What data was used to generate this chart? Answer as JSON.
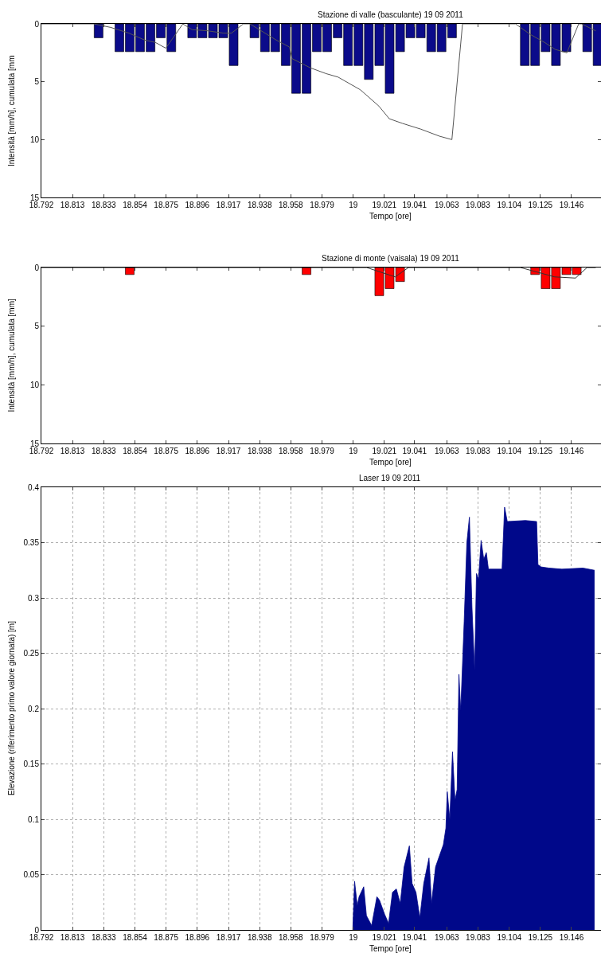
{
  "chart_data": [
    {
      "type": "bar",
      "title": "Stazione di valle (basculante) 19 09 2011",
      "xlabel": "Tempo [ore]",
      "ylabel": "Intensità [mm/h], cumulata [mm",
      "xlim": [
        18.7917,
        19.1655
      ],
      "ylim": [
        15,
        0
      ],
      "yticks": [
        0,
        5,
        10,
        15
      ],
      "xticks": [
        {
          "value": 18.7917,
          "label": "18.792"
        },
        {
          "value": 18.8125,
          "label": "18.813"
        },
        {
          "value": 18.8333,
          "label": "18.833"
        },
        {
          "value": 18.8542,
          "label": "18.854"
        },
        18.875,
        {
          "value": 18.8958,
          "label": "18.896"
        },
        {
          "value": 18.9167,
          "label": "18.917"
        },
        {
          "value": 18.9375,
          "label": "18.938"
        },
        {
          "value": 18.9583,
          "label": "18.958"
        },
        {
          "value": 18.9792,
          "label": "18.979"
        },
        19,
        {
          "value": 19.0208,
          "label": "19.021"
        },
        19.041,
        {
          "value": 19.0625,
          "label": "19.063"
        },
        {
          "value": 19.0833,
          "label": "19.083"
        },
        {
          "value": 19.1042,
          "label": "19.104"
        },
        19.125,
        {
          "value": 19.1458,
          "label": "19.146"
        }
      ],
      "series": [
        {
          "type": "bar",
          "color": "#0b0b8a",
          "x": [
            18.8299,
            18.8438,
            18.8507,
            18.8576,
            18.8646,
            18.8715,
            18.8785,
            18.8924,
            18.8993,
            18.9063,
            18.9132,
            18.9201,
            18.934,
            18.941,
            18.9479,
            18.9549,
            18.9618,
            18.9688,
            18.9757,
            18.9826,
            18.9896,
            18.9965,
            19.0035,
            19.0104,
            19.0174,
            19.0243,
            19.0313,
            19.0382,
            19.0451,
            19.0521,
            19.059,
            19.066,
            19.1146,
            19.1215,
            19.1285,
            19.1354,
            19.1424,
            19.1563,
            19.1632
          ],
          "values": [
            1.2,
            2.4,
            2.4,
            2.4,
            2.4,
            1.2,
            2.4,
            1.2,
            1.2,
            1.2,
            1.2,
            3.6,
            1.2,
            2.4,
            2.4,
            3.6,
            6.0,
            6.0,
            2.4,
            2.4,
            1.2,
            3.6,
            3.6,
            4.8,
            3.6,
            6.0,
            2.4,
            1.2,
            1.2,
            2.4,
            2.4,
            1.2,
            3.6,
            3.6,
            2.4,
            3.6,
            2.4,
            2.4,
            3.6
          ]
        },
        {
          "type": "line",
          "color": "#555555",
          "x": [
            18.7917,
            18.8265,
            18.8379,
            18.8502,
            18.8607,
            18.8678,
            18.8748,
            18.8862,
            18.8924,
            18.9029,
            18.9134,
            18.9187,
            18.9266,
            18.931,
            18.9398,
            18.9486,
            18.9574,
            18.9591,
            18.9714,
            18.9819,
            18.9899,
            19.0048,
            19.0171,
            19.0241,
            19.0329,
            19.0452,
            19.0575,
            19.0659,
            19.073,
            19.1084,
            19.1181,
            19.1278,
            19.1348,
            19.1427,
            19.1506,
            19.1524,
            19.162
          ],
          "values": [
            0,
            0,
            0.3,
            0.8,
            1.4,
            1.6,
            2.1,
            0,
            0.5,
            0.6,
            0.8,
            0.8,
            0,
            0,
            0.7,
            1.4,
            2.0,
            3.0,
            3.8,
            4.3,
            4.6,
            5.7,
            7.1,
            8.2,
            8.6,
            9.1,
            9.7,
            10.0,
            0,
            0,
            0.9,
            1.6,
            2.2,
            2.5,
            0,
            0,
            0.6
          ]
        }
      ]
    },
    {
      "type": "bar",
      "title": "Stazione di monte (vaisala) 19 09 2011",
      "xlabel": "Tempo [ore]",
      "ylabel": "Intensità [mm/h], cumulata [mm]",
      "xlim": [
        18.7917,
        19.1655
      ],
      "ylim": [
        15,
        0
      ],
      "yticks": [
        0,
        5,
        10,
        15
      ],
      "xticks": [
        {
          "value": 18.7917,
          "label": "18.792"
        },
        {
          "value": 18.8125,
          "label": "18.813"
        },
        {
          "value": 18.8333,
          "label": "18.833"
        },
        {
          "value": 18.8542,
          "label": "18.854"
        },
        18.875,
        {
          "value": 18.8958,
          "label": "18.896"
        },
        {
          "value": 18.9167,
          "label": "18.917"
        },
        {
          "value": 18.9375,
          "label": "18.938"
        },
        {
          "value": 18.9583,
          "label": "18.958"
        },
        {
          "value": 18.9792,
          "label": "18.979"
        },
        19,
        {
          "value": 19.0208,
          "label": "19.021"
        },
        19.041,
        {
          "value": 19.0625,
          "label": "19.063"
        },
        {
          "value": 19.0833,
          "label": "19.083"
        },
        {
          "value": 19.1042,
          "label": "19.104"
        },
        19.125,
        {
          "value": 19.1458,
          "label": "19.146"
        }
      ],
      "series": [
        {
          "type": "bar",
          "color": "#ff0000",
          "x": [
            18.8507,
            18.9688,
            19.0174,
            19.0243,
            19.0313,
            19.1215,
            19.1285,
            19.1354,
            19.1424,
            19.1493
          ],
          "values": [
            0.6,
            0.6,
            2.4,
            1.8,
            1.2,
            0.6,
            1.8,
            1.8,
            0.6,
            0.6
          ]
        },
        {
          "type": "line",
          "color": "#333333",
          "x": [
            18.7917,
            19.009,
            19.028,
            19.0369,
            19.1117,
            19.1346,
            19.1485,
            19.1562,
            19.162
          ],
          "values": [
            0,
            0,
            0.8,
            0,
            0,
            0.8,
            0.9,
            0,
            0
          ]
        }
      ]
    },
    {
      "type": "area",
      "title": "Laser 19 09 2011",
      "xlabel": "Tempo [ore]",
      "ylabel": "Elevazione (riferimento primo valore giornata) [m]",
      "xlim": [
        18.7917,
        19.1655
      ],
      "ylim": [
        0,
        0.4
      ],
      "yticks": [
        0,
        0.05,
        0.1,
        0.15,
        0.2,
        0.25,
        0.3,
        0.35,
        0.4
      ],
      "xticks": [
        {
          "value": 18.7917,
          "label": "18.792"
        },
        {
          "value": 18.8125,
          "label": "18.813"
        },
        {
          "value": 18.8333,
          "label": "18.833"
        },
        {
          "value": 18.8542,
          "label": "18.854"
        },
        18.875,
        {
          "value": 18.8958,
          "label": "18.896"
        },
        {
          "value": 18.9167,
          "label": "18.917"
        },
        {
          "value": 18.9375,
          "label": "18.938"
        },
        {
          "value": 18.9583,
          "label": "18.958"
        },
        {
          "value": 18.9792,
          "label": "18.979"
        },
        19,
        {
          "value": 19.0208,
          "label": "19.021"
        },
        19.041,
        {
          "value": 19.0625,
          "label": "19.063"
        },
        {
          "value": 19.0833,
          "label": "19.083"
        },
        {
          "value": 19.1042,
          "label": "19.104"
        },
        19.125,
        {
          "value": 19.1458,
          "label": "19.146"
        }
      ],
      "grid": true,
      "line_style": "dotted",
      "series": [
        {
          "color": "#00088a",
          "x": [
            18.9997,
            19.0009,
            19.0027,
            19.0039,
            19.007,
            19.0088,
            19.0123,
            19.0158,
            19.0175,
            19.021,
            19.0236,
            19.0262,
            19.0288,
            19.0314,
            19.034,
            19.0375,
            19.0393,
            19.0419,
            19.0445,
            19.0471,
            19.0506,
            19.0523,
            19.055,
            19.0576,
            19.0602,
            19.0619,
            19.0628,
            19.0645,
            19.0663,
            19.068,
            19.0694,
            19.0706,
            19.0718,
            19.0741,
            19.0759,
            19.0776,
            19.0793,
            19.0811,
            19.0823,
            19.0837,
            19.0854,
            19.0872,
            19.0889,
            19.0903,
            19.0994,
            19.1011,
            19.1029,
            19.115,
            19.1225,
            19.1234,
            19.1255,
            19.1307,
            19.1394,
            19.1534,
            19.1612
          ],
          "values": [
            0,
            0.044,
            0.022,
            0.03,
            0.039,
            0.013,
            0.004,
            0.03,
            0.027,
            0.014,
            0.006,
            0.034,
            0.037,
            0.024,
            0.057,
            0.076,
            0.042,
            0.034,
            0.011,
            0.042,
            0.065,
            0.024,
            0.057,
            0.067,
            0.077,
            0.092,
            0.125,
            0.1,
            0.161,
            0.117,
            0.127,
            0.231,
            0.198,
            0.279,
            0.35,
            0.373,
            0.292,
            0.234,
            0.322,
            0.317,
            0.352,
            0.335,
            0.341,
            0.326,
            0.326,
            0.382,
            0.369,
            0.37,
            0.369,
            0.33,
            0.328,
            0.327,
            0.326,
            0.327,
            0.325
          ]
        }
      ]
    }
  ]
}
